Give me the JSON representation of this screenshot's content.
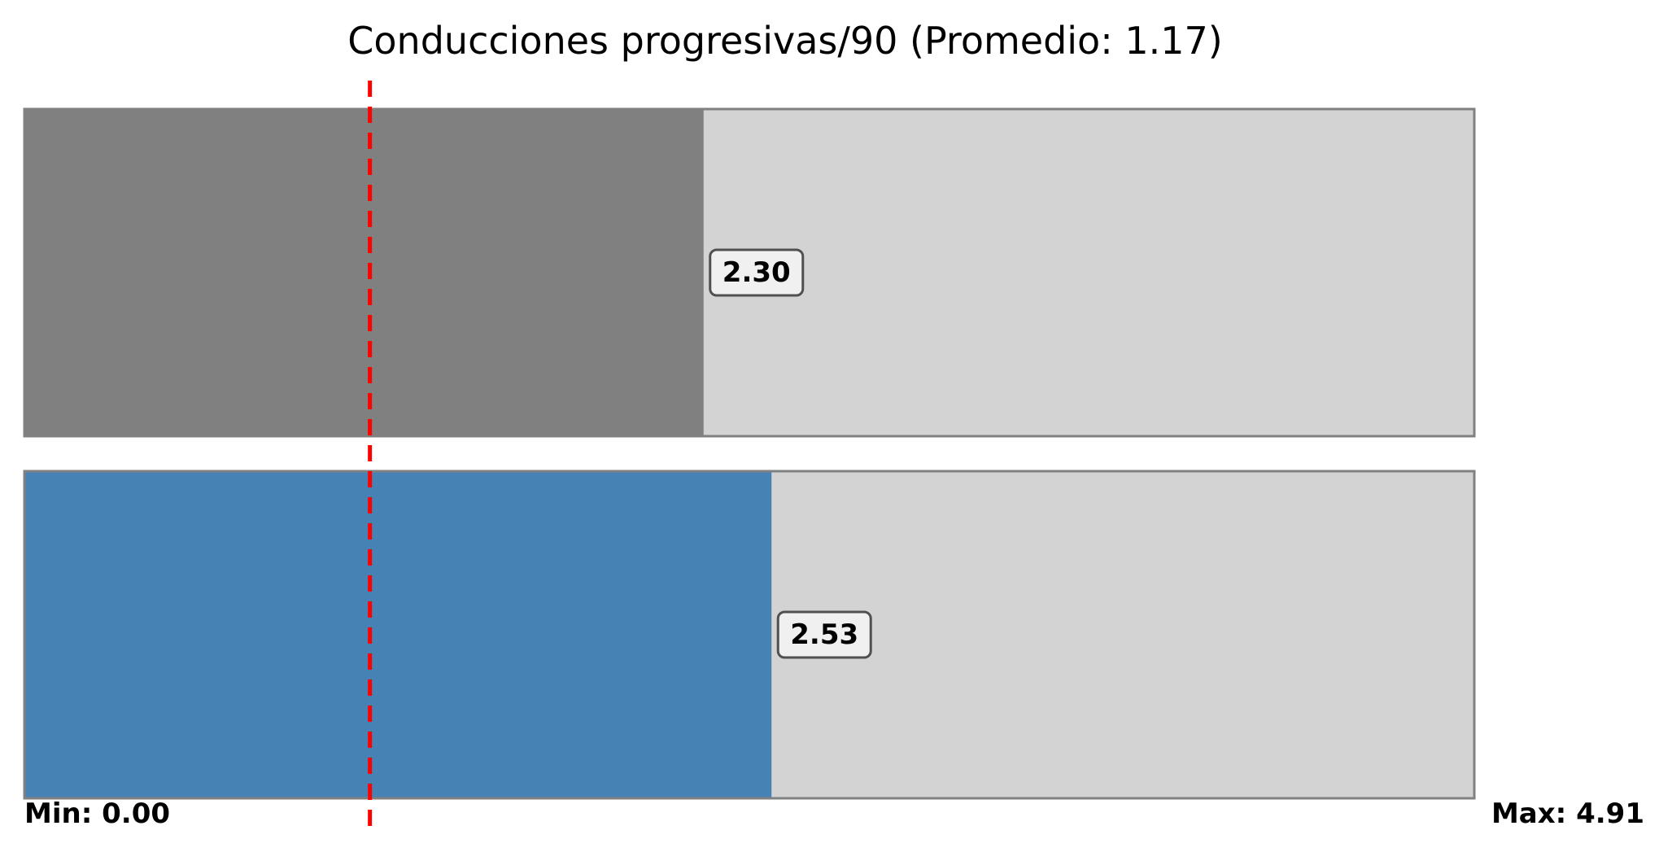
{
  "chart_data": {
    "type": "bar",
    "orientation": "horizontal",
    "title": "Conducciones progresivas/90 (Promedio: 1.17)",
    "xlim": [
      0,
      4.91
    ],
    "min_label": "Min: 0.00",
    "max_label": "Max: 4.91",
    "average": 1.17,
    "background_color": "#d3d3d3",
    "border_color": "#808080",
    "average_line_color": "#ff0000",
    "bars": [
      {
        "value": 2.3,
        "label": "2.30",
        "color": "#808080"
      },
      {
        "value": 2.53,
        "label": "2.53",
        "color": "#4682b4"
      }
    ],
    "grid": false,
    "legend": "none"
  }
}
